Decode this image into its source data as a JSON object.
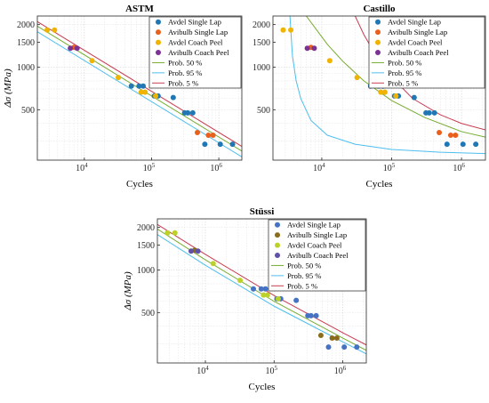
{
  "colors": {
    "avdel_single_lap": "#1f77b4",
    "avibulb_single_lap": "#e8601c",
    "avdel_coach_peel": "#f0b400",
    "avibulb_coach_peel": "#7b3294",
    "prob50": "#77ac30",
    "prob95": "#4dbeee",
    "prob5": "#c83c50",
    "stussi_avdel_single_lap": "#4472c4",
    "stussi_avibulb_single_lap": "#8a6d1a",
    "stussi_avdel_coach_peel": "#bcd22a",
    "stussi_avibulb_coach_peel": "#6050a8"
  },
  "chart_data": [
    {
      "type": "scatter",
      "title": "ASTM",
      "xlabel": "Cycles",
      "ylabel": "Δσ (MPa)",
      "x_scale": "log",
      "y_scale": "log",
      "xlim": [
        2000,
        2200000
      ],
      "ylim": [
        220,
        2300
      ],
      "xticks": [
        {
          "v": 10000,
          "label": "10",
          "sup": "4"
        },
        {
          "v": 100000,
          "label": "10",
          "sup": "5"
        },
        {
          "v": 1000000,
          "label": "10",
          "sup": "6"
        }
      ],
      "yticks": [
        {
          "v": 500,
          "label": "500"
        },
        {
          "v": 1000,
          "label": "1000"
        },
        {
          "v": 1500,
          "label": "1500"
        },
        {
          "v": 2000,
          "label": "2000"
        }
      ],
      "grid": true,
      "legend": "top-right",
      "series": [
        {
          "name": "Avdel Single Lap",
          "kind": "scatter",
          "color_key": "avdel_single_lap",
          "x": [
            50000,
            65000,
            75000,
            110000,
            125000,
            210000,
            310000,
            345000,
            410000,
            620000,
            1050000,
            1600000
          ],
          "y": [
            735,
            735,
            735,
            625,
            625,
            610,
            475,
            475,
            475,
            285,
            285,
            285
          ]
        },
        {
          "name": "Avibulb Single Lap",
          "kind": "scatter",
          "color_key": "avibulb_single_lap",
          "x": [
            7000,
            480000,
            700000,
            820000
          ],
          "y": [
            1380,
            345,
            330,
            330
          ]
        },
        {
          "name": "Avdel Coach Peel",
          "kind": "scatter",
          "color_key": "avdel_coach_peel",
          "x": [
            2800,
            3600,
            13000,
            32000,
            70000,
            80000,
            115000
          ],
          "y": [
            1830,
            1830,
            1110,
            845,
            665,
            665,
            625
          ]
        },
        {
          "name": "Avibulb Coach Peel",
          "kind": "scatter",
          "color_key": "avibulb_coach_peel",
          "x": [
            6200,
            7800
          ],
          "y": [
            1360,
            1360
          ]
        },
        {
          "name": "Prob. 50 %",
          "kind": "line",
          "color_key": "prob50",
          "x": [
            2000,
            2200000
          ],
          "y": [
            1950,
            255
          ]
        },
        {
          "name": "Prob. 95 %",
          "kind": "line",
          "color_key": "prob95",
          "x": [
            2000,
            2200000
          ],
          "y": [
            1780,
            232
          ]
        },
        {
          "name": "Prob. 5 %",
          "kind": "line",
          "color_key": "prob5",
          "x": [
            2000,
            2200000
          ],
          "y": [
            2100,
            275
          ]
        }
      ]
    },
    {
      "type": "scatter",
      "title": "Castillo",
      "xlabel": "Cycles",
      "ylabel": "",
      "x_scale": "log",
      "y_scale": "log",
      "xlim": [
        2000,
        2200000
      ],
      "ylim": [
        220,
        2300
      ],
      "xticks": [
        {
          "v": 10000,
          "label": "10",
          "sup": "4"
        },
        {
          "v": 100000,
          "label": "10",
          "sup": "5"
        },
        {
          "v": 1000000,
          "label": "10",
          "sup": "6"
        }
      ],
      "yticks": [
        {
          "v": 500,
          "label": "500"
        },
        {
          "v": 1000,
          "label": "1000"
        },
        {
          "v": 1500,
          "label": "1500"
        },
        {
          "v": 2000,
          "label": "2000"
        }
      ],
      "grid": true,
      "legend": "top-right",
      "series": [
        {
          "name": "Avdel Single Lap",
          "kind": "scatter",
          "color_key": "avdel_single_lap",
          "x": [
            50000,
            65000,
            75000,
            110000,
            125000,
            210000,
            310000,
            345000,
            410000,
            620000,
            1050000,
            1600000
          ],
          "y": [
            735,
            735,
            735,
            625,
            625,
            610,
            475,
            475,
            475,
            285,
            285,
            285
          ]
        },
        {
          "name": "Avibulb Single Lap",
          "kind": "scatter",
          "color_key": "avibulb_single_lap",
          "x": [
            7000,
            480000,
            700000,
            820000
          ],
          "y": [
            1380,
            345,
            330,
            330
          ]
        },
        {
          "name": "Avdel Coach Peel",
          "kind": "scatter",
          "color_key": "avdel_coach_peel",
          "x": [
            2800,
            3600,
            13000,
            32000,
            70000,
            80000,
            115000
          ],
          "y": [
            1830,
            1830,
            1110,
            845,
            665,
            665,
            625
          ]
        },
        {
          "name": "Avibulb Coach Peel",
          "kind": "scatter",
          "color_key": "avibulb_coach_peel",
          "x": [
            6200,
            7800
          ],
          "y": [
            1360,
            1360
          ]
        },
        {
          "name": "Prob. 50 %",
          "kind": "line",
          "color_key": "prob50",
          "x": [
            6000,
            8000,
            12000,
            20000,
            40000,
            100000,
            300000,
            1000000,
            2200000
          ],
          "y": [
            2300,
            1900,
            1450,
            1100,
            800,
            580,
            440,
            350,
            320
          ]
        },
        {
          "name": "Prob. 95 %",
          "kind": "line",
          "color_key": "prob95",
          "x": [
            3500,
            3800,
            4300,
            5000,
            7000,
            12000,
            30000,
            100000,
            500000,
            2200000
          ],
          "y": [
            2300,
            1200,
            800,
            600,
            420,
            330,
            285,
            262,
            250,
            245
          ]
        },
        {
          "name": "Prob. 5 %",
          "kind": "line",
          "color_key": "prob5",
          "x": [
            30000,
            40000,
            60000,
            100000,
            200000,
            500000,
            1000000,
            2200000
          ],
          "y": [
            2300,
            1700,
            1200,
            850,
            600,
            460,
            400,
            360
          ]
        }
      ]
    },
    {
      "type": "scatter",
      "title": "Stüssi",
      "xlabel": "Cycles",
      "ylabel": "Δσ (MPa)",
      "x_scale": "log",
      "y_scale": "log",
      "xlim": [
        2000,
        2200000
      ],
      "ylim": [
        220,
        2300
      ],
      "xticks": [
        {
          "v": 10000,
          "label": "10",
          "sup": "4"
        },
        {
          "v": 100000,
          "label": "10",
          "sup": "5"
        },
        {
          "v": 1000000,
          "label": "10",
          "sup": "6"
        }
      ],
      "yticks": [
        {
          "v": 500,
          "label": "500"
        },
        {
          "v": 1000,
          "label": "1000"
        },
        {
          "v": 1500,
          "label": "1500"
        },
        {
          "v": 2000,
          "label": "2000"
        }
      ],
      "grid": true,
      "legend": "top-right",
      "series": [
        {
          "name": "Avdel Single Lap",
          "kind": "scatter",
          "color_key": "stussi_avdel_single_lap",
          "x": [
            50000,
            65000,
            75000,
            110000,
            125000,
            210000,
            310000,
            345000,
            410000,
            620000,
            1050000,
            1600000
          ],
          "y": [
            735,
            735,
            735,
            625,
            625,
            610,
            475,
            475,
            475,
            285,
            285,
            285
          ]
        },
        {
          "name": "Avibulb Single Lap",
          "kind": "scatter",
          "color_key": "stussi_avibulb_single_lap",
          "x": [
            7000,
            480000,
            700000,
            820000
          ],
          "y": [
            1380,
            345,
            330,
            330
          ]
        },
        {
          "name": "Avdel Coach Peel",
          "kind": "scatter",
          "color_key": "stussi_avdel_coach_peel",
          "x": [
            2800,
            3600,
            13000,
            32000,
            70000,
            80000,
            115000
          ],
          "y": [
            1830,
            1830,
            1110,
            845,
            665,
            665,
            625
          ]
        },
        {
          "name": "Avibulb Coach Peel",
          "kind": "scatter",
          "color_key": "stussi_avibulb_coach_peel",
          "x": [
            6200,
            7800
          ],
          "y": [
            1360,
            1360
          ]
        },
        {
          "name": "Prob. 50 %",
          "kind": "line",
          "color_key": "prob50",
          "x": [
            2000,
            10000,
            100000,
            1000000,
            2200000
          ],
          "y": [
            1950,
            1180,
            600,
            330,
            270
          ]
        },
        {
          "name": "Prob. 95 %",
          "kind": "line",
          "color_key": "prob95",
          "x": [
            2000,
            10000,
            100000,
            1000000,
            2200000
          ],
          "y": [
            1780,
            1080,
            555,
            310,
            255
          ]
        },
        {
          "name": "Prob. 5 %",
          "kind": "line",
          "color_key": "prob5",
          "x": [
            2000,
            10000,
            100000,
            1000000,
            2200000
          ],
          "y": [
            2100,
            1290,
            660,
            360,
            295
          ]
        }
      ]
    }
  ]
}
